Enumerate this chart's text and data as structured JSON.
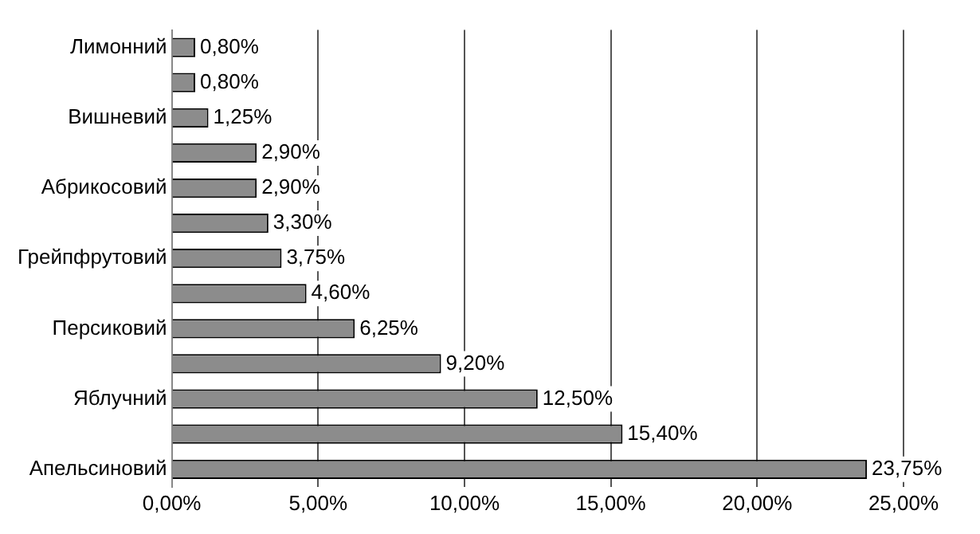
{
  "chart_data": {
    "type": "bar",
    "orientation": "horizontal",
    "categories": [
      "Лимонний",
      null,
      "Вишневий",
      null,
      "Абрикосовий",
      null,
      "Грейпфрутовий",
      null,
      "Персиковий",
      null,
      "Яблучний",
      null,
      "Апельсиновий"
    ],
    "values": [
      0.8,
      0.8,
      1.25,
      2.9,
      2.9,
      3.3,
      3.75,
      4.6,
      6.25,
      9.2,
      12.5,
      15.4,
      23.75
    ],
    "value_labels": [
      "0,80%",
      "0,80%",
      "1,25%",
      "2,90%",
      "2,90%",
      "3,30%",
      "3,75%",
      "4,60%",
      "6,25%",
      "9,20%",
      "12,50%",
      "15,40%",
      "23,75%"
    ],
    "color": "#8c8c8c",
    "xlim": [
      0,
      25
    ],
    "xticks": [
      {
        "value": 0,
        "label": "0,00%"
      },
      {
        "value": 5,
        "label": "5,00%"
      },
      {
        "value": 10,
        "label": "10,00%"
      },
      {
        "value": 15,
        "label": "15,00%"
      },
      {
        "value": 20,
        "label": "20,00%"
      },
      {
        "value": 25,
        "label": "25,00%"
      }
    ],
    "grid": "x",
    "legend": false
  }
}
